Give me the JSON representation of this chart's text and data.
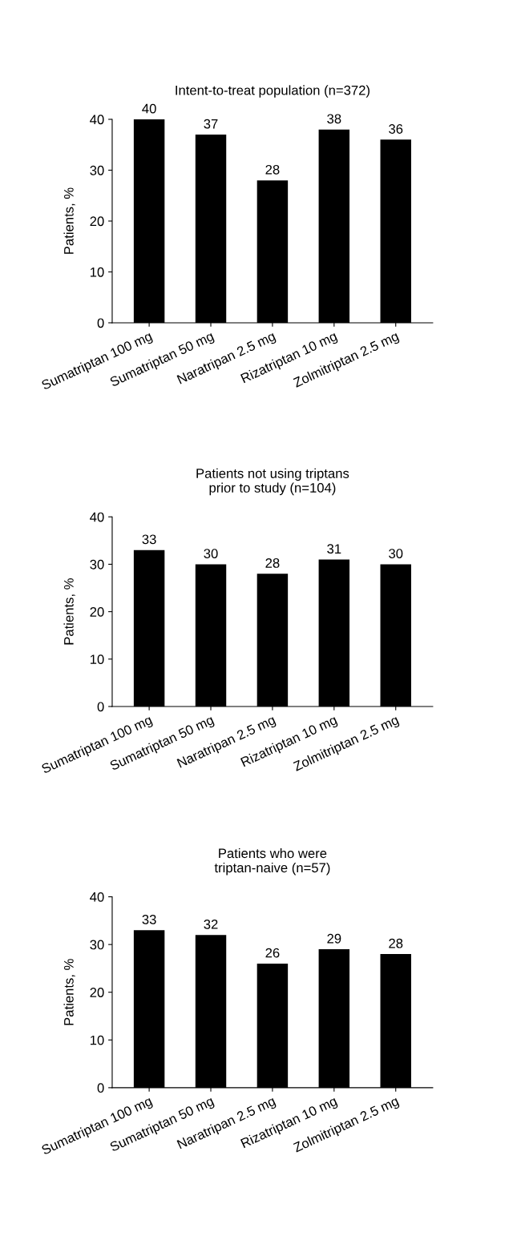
{
  "chart_data": [
    {
      "type": "bar",
      "title": "Intent-to-treat population (n=372)",
      "ylabel": "Patients, %",
      "categories": [
        "Sumatriptan 100 mg",
        "Sumatriptan 50 mg",
        "Naratripan 2.5 mg",
        "Rizatriptan 10 mg",
        "Zolmitriptan 2.5 mg"
      ],
      "values": [
        40,
        37,
        28,
        38,
        36
      ],
      "color": "#000000",
      "ylim": [
        0,
        40
      ],
      "yticks": [
        0,
        10,
        20,
        30,
        40
      ],
      "data_labels": true,
      "grid": false
    },
    {
      "type": "bar",
      "title": "Patients not using triptans\nprior to study (n=104)",
      "ylabel": "Patients, %",
      "categories": [
        "Sumatriptan 100 mg",
        "Sumatriptan 50 mg",
        "Naratripan 2.5 mg",
        "Rizatriptan 10 mg",
        "Zolmitriptan 2.5 mg"
      ],
      "values": [
        33,
        30,
        28,
        31,
        30
      ],
      "color": "#000000",
      "ylim": [
        0,
        40
      ],
      "yticks": [
        0,
        10,
        20,
        30,
        40
      ],
      "data_labels": true,
      "grid": false
    },
    {
      "type": "bar",
      "title": "Patients who were\ntriptan-naive (n=57)",
      "ylabel": "Patients, %",
      "categories": [
        "Sumatriptan 100 mg",
        "Sumatriptan 50 mg",
        "Naratripan 2.5 mg",
        "Rizatriptan 10 mg",
        "Zolmitriptan 2.5 mg"
      ],
      "values": [
        33,
        32,
        26,
        29,
        28
      ],
      "color": "#000000",
      "ylim": [
        0,
        40
      ],
      "yticks": [
        0,
        10,
        20,
        30,
        40
      ],
      "data_labels": true,
      "grid": false
    }
  ]
}
